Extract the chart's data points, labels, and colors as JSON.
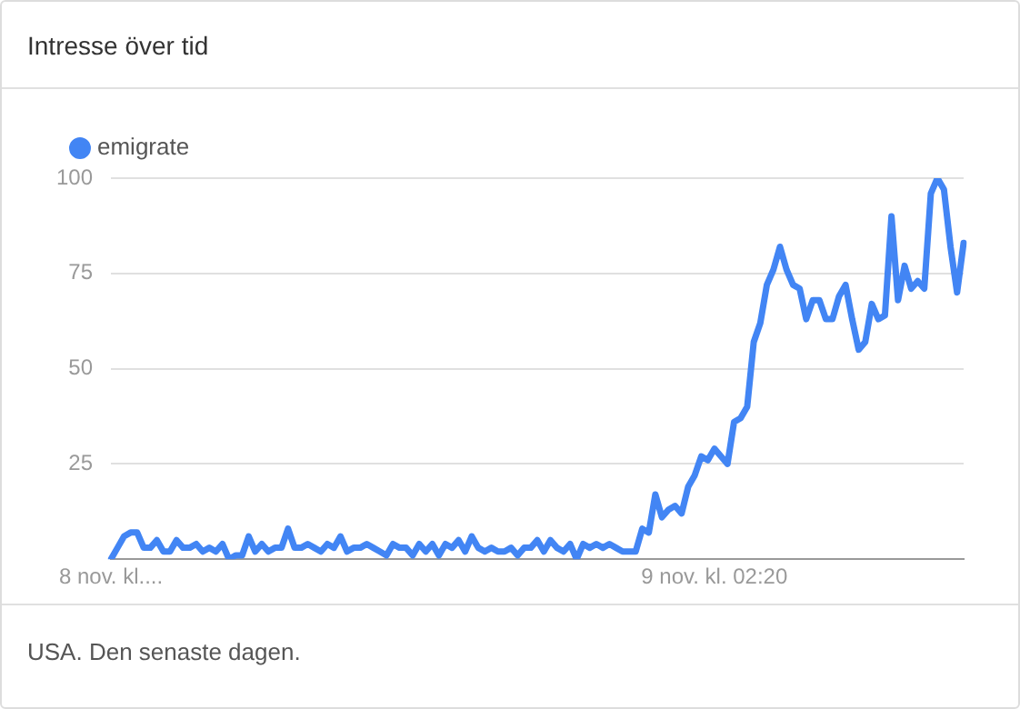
{
  "chart_data": {
    "type": "line",
    "title": "Intresse över tid",
    "annotations": [
      "USA. Den senaste dagen."
    ],
    "categories": [
      "8 nov. kl....",
      null,
      null,
      null,
      null,
      null,
      null,
      null,
      null,
      null,
      null,
      null,
      null,
      null,
      null,
      null,
      null,
      null,
      null,
      null,
      null,
      null,
      null,
      null,
      null,
      null,
      null,
      null,
      null,
      null,
      null,
      null,
      null,
      null,
      null,
      null,
      null,
      null,
      null,
      null,
      null,
      null,
      null,
      null,
      null,
      null,
      null,
      null,
      null,
      null,
      null,
      null,
      null,
      null,
      null,
      null,
      null,
      null,
      null,
      null,
      null,
      null,
      null,
      null,
      null,
      null,
      null,
      null,
      null,
      null,
      null,
      null,
      null,
      null,
      null,
      null,
      null,
      null,
      null,
      null,
      null,
      null,
      null,
      null,
      null,
      null,
      null,
      null,
      null,
      null,
      null,
      null,
      "9 nov. kl. 02:20",
      null,
      null,
      null,
      null,
      null,
      null,
      null,
      null,
      null,
      null,
      null,
      null,
      null,
      null,
      null,
      null,
      null,
      null,
      null,
      null,
      null,
      null,
      null,
      null,
      null,
      null,
      null,
      null,
      null,
      null,
      null,
      null,
      null,
      null,
      null,
      null,
      null,
      null
    ],
    "series": [
      {
        "name": "emigrate",
        "color": "#4285f4",
        "values": [
          0,
          3,
          6,
          7,
          7,
          3,
          3,
          5,
          2,
          2,
          5,
          3,
          3,
          4,
          2,
          3,
          2,
          4,
          0,
          1,
          1,
          6,
          2,
          4,
          2,
          3,
          3,
          8,
          3,
          3,
          4,
          3,
          2,
          4,
          3,
          6,
          2,
          3,
          3,
          4,
          3,
          2,
          1,
          4,
          3,
          3,
          1,
          4,
          2,
          4,
          1,
          4,
          3,
          5,
          2,
          6,
          3,
          2,
          3,
          2,
          2,
          3,
          1,
          3,
          3,
          5,
          2,
          5,
          3,
          2,
          4,
          0,
          4,
          3,
          4,
          3,
          4,
          3,
          2,
          2,
          2,
          8,
          7,
          17,
          11,
          13,
          14,
          12,
          19,
          22,
          27,
          26,
          29,
          27,
          25,
          36,
          37,
          40,
          57,
          62,
          72,
          76,
          82,
          76,
          72,
          71,
          63,
          68,
          68,
          63,
          63,
          69,
          72,
          63,
          55,
          57,
          67,
          63,
          64,
          90,
          68,
          77,
          71,
          73,
          71,
          96,
          100,
          97,
          82,
          70,
          83
        ]
      }
    ],
    "ylim": [
      0,
      100
    ],
    "yticks": [
      {
        "value": 0,
        "label": null
      },
      25,
      50,
      75,
      100
    ],
    "grid": "y",
    "legend": "top left",
    "marker": "none",
    "line_style": "solid"
  }
}
